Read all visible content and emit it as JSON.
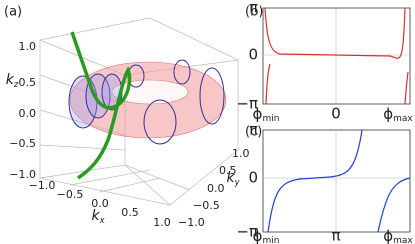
{
  "panel_a": {
    "label": "(a)",
    "axis_labels": {
      "kz": {
        "base": "k",
        "sub": "z"
      },
      "kx": {
        "base": "k",
        "sub": "x"
      },
      "ky": {
        "base": "k",
        "sub": "y"
      }
    },
    "kz_ticks": [
      "1.0",
      "0.5",
      "0.0",
      "−0.5",
      "−1.0"
    ],
    "kx_ticks": [
      "−1.0",
      "−0.5",
      "0.0",
      "0.5",
      "1.0"
    ],
    "ky_ticks": [
      "−1.0",
      "−0.5",
      "0.0",
      "0.5",
      "1.0"
    ]
  },
  "panel_b": {
    "label": "(b)",
    "y_ticks": [
      "π",
      "0",
      "−π"
    ],
    "x_ticks": [
      {
        "base": "ϕ",
        "sub": "min"
      },
      "0",
      {
        "base": "ϕ",
        "sub": "max"
      }
    ]
  },
  "panel_c": {
    "label": "(c)",
    "y_ticks": [
      "π",
      "0",
      "−π"
    ],
    "x_ticks": [
      {
        "base": "ϕ",
        "sub": "min"
      },
      "π",
      {
        "base": "ϕ",
        "sub": "max"
      }
    ]
  }
}
